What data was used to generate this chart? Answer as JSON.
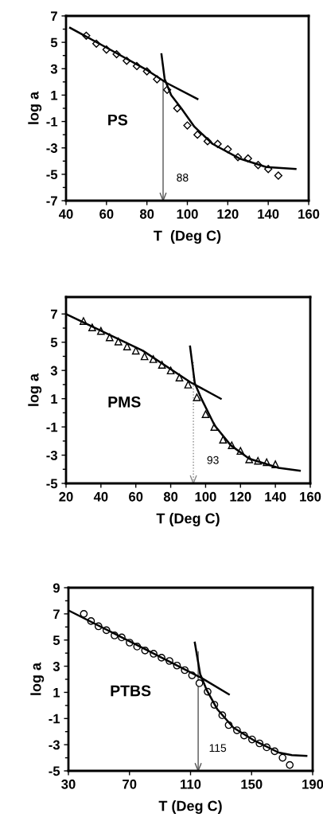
{
  "chart_data": [
    {
      "type": "scatter",
      "xlabel": "T  (Deg C)",
      "ylabel": "log a",
      "annotations": [
        "PS"
      ],
      "xlim": [
        40,
        160
      ],
      "xticks": [
        40,
        60,
        80,
        100,
        120,
        140,
        160
      ],
      "ylim": [
        -7,
        7
      ],
      "yticks": [
        -7,
        -5,
        -3,
        -1,
        1,
        3,
        5,
        7
      ],
      "grid": false,
      "ref_lines": [
        {
          "axis": "x",
          "value": 88,
          "label": "88",
          "color": "#555555",
          "line_style": "solid"
        }
      ],
      "series": [
        {
          "marker": "diamond",
          "color": "#000000",
          "x": [
            50,
            55,
            60,
            65,
            70,
            75,
            80,
            85,
            90,
            95,
            100,
            105,
            110,
            115,
            120,
            125,
            130,
            135,
            140,
            145
          ],
          "values": [
            5.5,
            4.9,
            4.45,
            4.1,
            3.6,
            3.2,
            2.8,
            2.2,
            1.4,
            0.0,
            -1.3,
            -2.0,
            -2.5,
            -2.7,
            -3.1,
            -3.7,
            -3.8,
            -4.3,
            -4.6,
            -5.1
          ]
        },
        {
          "type": "line",
          "marker": "none",
          "color": "#000000",
          "x": [
            42,
            60,
            80,
            90,
            105
          ],
          "values": [
            6.1,
            4.6,
            2.9,
            1.9,
            0.7
          ]
        },
        {
          "type": "line",
          "marker": "none",
          "color": "#000000",
          "x": [
            87.2,
            88.8,
            92,
            97,
            103.5,
            112.5,
            125.7,
            139,
            153.5
          ],
          "values": [
            4.1,
            2.2,
            1.0,
            0.0,
            -1.4,
            -2.7,
            -3.8,
            -4.45,
            -4.6
          ]
        }
      ]
    },
    {
      "type": "scatter",
      "xlabel": "T (Deg C)",
      "ylabel": "log a",
      "annotations": [
        "PMS"
      ],
      "xlim": [
        20,
        160
      ],
      "xticks": [
        20,
        40,
        60,
        80,
        100,
        120,
        140,
        160
      ],
      "ylim": [
        -5,
        8.2
      ],
      "yticks": [
        -5,
        -3,
        -1,
        1,
        3,
        5,
        7
      ],
      "grid": false,
      "ref_lines": [
        {
          "axis": "x",
          "value": 93,
          "label": "93",
          "color": "#888888",
          "line_style": "dotted"
        }
      ],
      "series": [
        {
          "marker": "triangle",
          "color": "#000000",
          "x": [
            30,
            35,
            40,
            45,
            50,
            55,
            60,
            65,
            70,
            75,
            80,
            85,
            90,
            95,
            100,
            105,
            110,
            115,
            120,
            125,
            130,
            135,
            140
          ],
          "values": [
            6.5,
            6.05,
            5.8,
            5.35,
            5.05,
            4.7,
            4.4,
            4.0,
            3.8,
            3.4,
            3.0,
            2.5,
            2.0,
            1.1,
            -0.1,
            -1.0,
            -1.9,
            -2.3,
            -2.7,
            -3.3,
            -3.4,
            -3.5,
            -3.65
          ]
        },
        {
          "type": "line",
          "marker": "none",
          "color": "#000000",
          "x": [
            20,
            64,
            91.5,
            108.7
          ],
          "values": [
            7.0,
            4.4,
            2.15,
            1.0
          ]
        },
        {
          "type": "line",
          "marker": "none",
          "color": "#000000",
          "x": [
            91.1,
            93.8,
            97.6,
            105.2,
            114.4,
            125,
            141.8,
            154
          ],
          "values": [
            4.7,
            2.1,
            1.0,
            -0.9,
            -2.3,
            -3.25,
            -3.9,
            -4.1
          ]
        }
      ]
    },
    {
      "type": "scatter",
      "xlabel": "T (Deg C)",
      "ylabel": "log a",
      "annotations": [
        "PTBS"
      ],
      "xlim": [
        30,
        190
      ],
      "xticks": [
        30,
        70,
        110,
        150,
        190
      ],
      "ylim": [
        -5,
        9
      ],
      "yticks": [
        -5,
        -3,
        -1,
        1,
        3,
        5,
        7,
        9
      ],
      "grid": false,
      "ref_lines": [
        {
          "axis": "x",
          "value": 115,
          "label": "115",
          "color": "#555555",
          "line_style": "solid"
        }
      ],
      "series": [
        {
          "marker": "circle",
          "color": "#000000",
          "x": [
            40.1,
            44.8,
            49.7,
            54.9,
            60.2,
            64.9,
            70.1,
            75,
            80.2,
            85.8,
            91,
            96.2,
            101.1,
            106.2,
            111,
            115.8,
            121.2,
            125.6,
            130.8,
            135,
            140.4,
            145.1,
            150.3,
            155.2,
            159.9,
            165.1,
            170.3,
            175
          ],
          "values": [
            7.0,
            6.45,
            6.05,
            5.75,
            5.35,
            5.2,
            4.8,
            4.5,
            4.2,
            3.95,
            3.65,
            3.4,
            3.05,
            2.7,
            2.3,
            1.7,
            1.05,
            0.05,
            -0.75,
            -1.5,
            -1.9,
            -2.3,
            -2.6,
            -2.9,
            -3.2,
            -3.5,
            -4.0,
            -4.55
          ]
        },
        {
          "type": "line",
          "marker": "none",
          "color": "#000000",
          "x": [
            30.3,
            75.3,
            117.2,
            135.1
          ],
          "values": [
            7.25,
            4.6,
            2.1,
            0.85
          ]
        },
        {
          "type": "line",
          "marker": "none",
          "color": "#000000",
          "x": [
            112.8,
            116.3,
            120.7,
            127.6,
            138.1,
            152,
            167.7,
            176.4,
            185.9
          ],
          "values": [
            4.8,
            2.4,
            1.15,
            -0.3,
            -1.7,
            -2.7,
            -3.6,
            -3.8,
            -3.85
          ]
        }
      ]
    }
  ]
}
